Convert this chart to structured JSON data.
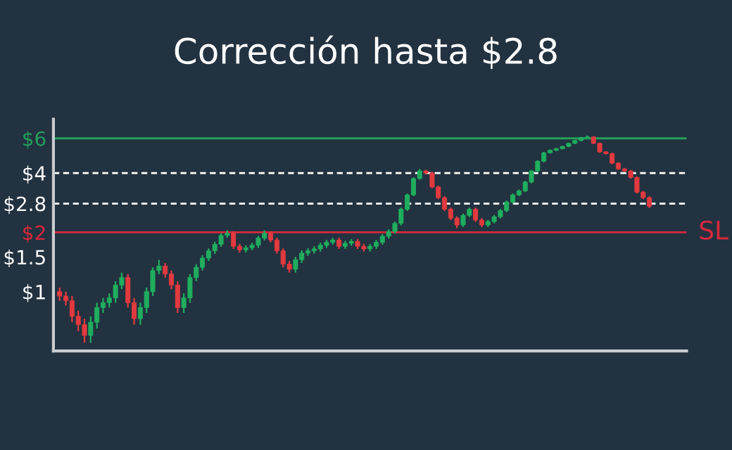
{
  "chart_data": {
    "type": "candlestick",
    "title": "Corrección hasta $2.8",
    "categories": [
      null,
      null,
      null,
      null,
      null,
      null,
      null,
      null,
      null,
      null,
      null,
      null,
      null,
      null,
      null,
      null,
      null,
      null,
      null,
      null,
      null,
      null,
      null,
      null,
      null,
      null,
      null,
      null,
      null,
      null,
      null,
      null,
      null,
      null,
      null,
      null,
      null,
      null,
      null,
      null,
      null,
      null,
      null,
      null,
      null,
      null,
      null,
      null,
      null,
      null,
      null,
      null,
      null,
      null,
      null,
      null,
      null,
      null,
      null,
      null,
      null,
      null,
      null,
      null,
      null,
      null,
      null,
      null,
      null,
      null,
      null,
      null,
      null,
      null,
      null,
      null,
      null,
      null,
      null,
      null,
      null,
      null,
      null,
      null,
      null,
      null,
      null,
      null,
      null,
      null,
      null,
      null,
      null,
      null,
      null,
      null
    ],
    "ohlc": [
      [
        1.0,
        1.05,
        0.9,
        0.95
      ],
      [
        0.95,
        1.0,
        0.85,
        0.9
      ],
      [
        0.9,
        0.95,
        0.7,
        0.75
      ],
      [
        0.75,
        0.8,
        0.63,
        0.68
      ],
      [
        0.68,
        0.73,
        0.55,
        0.6
      ],
      [
        0.6,
        0.75,
        0.55,
        0.7
      ],
      [
        0.7,
        0.88,
        0.65,
        0.83
      ],
      [
        0.83,
        0.93,
        0.78,
        0.88
      ],
      [
        0.88,
        0.98,
        0.83,
        0.93
      ],
      [
        0.93,
        1.13,
        0.88,
        1.08
      ],
      [
        1.08,
        1.25,
        1.03,
        1.18
      ],
      [
        1.18,
        1.23,
        0.83,
        0.88
      ],
      [
        0.88,
        0.93,
        0.68,
        0.73
      ],
      [
        0.73,
        0.88,
        0.68,
        0.83
      ],
      [
        0.83,
        1.05,
        0.78,
        1.0
      ],
      [
        1.0,
        1.33,
        0.95,
        1.28
      ],
      [
        1.28,
        1.45,
        1.23,
        1.35
      ],
      [
        1.35,
        1.4,
        1.18,
        1.23
      ],
      [
        1.23,
        1.28,
        1.03,
        1.08
      ],
      [
        1.08,
        1.13,
        0.78,
        0.83
      ],
      [
        0.83,
        0.98,
        0.78,
        0.93
      ],
      [
        0.93,
        1.23,
        0.88,
        1.18
      ],
      [
        1.18,
        1.38,
        1.13,
        1.33
      ],
      [
        1.33,
        1.53,
        1.28,
        1.48
      ],
      [
        1.48,
        1.66,
        1.43,
        1.61
      ],
      [
        1.61,
        1.79,
        1.56,
        1.74
      ],
      [
        1.74,
        1.98,
        1.69,
        1.93
      ],
      [
        1.93,
        2.05,
        1.88,
        1.98
      ],
      [
        1.98,
        2.03,
        1.65,
        1.7
      ],
      [
        1.7,
        1.75,
        1.58,
        1.63
      ],
      [
        1.63,
        1.72,
        1.58,
        1.67
      ],
      [
        1.67,
        1.77,
        1.62,
        1.72
      ],
      [
        1.72,
        1.92,
        1.67,
        1.87
      ],
      [
        1.87,
        2.05,
        1.82,
        1.98
      ],
      [
        1.98,
        2.03,
        1.78,
        1.83
      ],
      [
        1.83,
        1.88,
        1.56,
        1.61
      ],
      [
        1.61,
        1.66,
        1.33,
        1.38
      ],
      [
        1.38,
        1.43,
        1.25,
        1.3
      ],
      [
        1.3,
        1.5,
        1.25,
        1.45
      ],
      [
        1.45,
        1.62,
        1.4,
        1.57
      ],
      [
        1.57,
        1.66,
        1.52,
        1.61
      ],
      [
        1.61,
        1.7,
        1.56,
        1.65
      ],
      [
        1.65,
        1.77,
        1.6,
        1.72
      ],
      [
        1.72,
        1.83,
        1.67,
        1.78
      ],
      [
        1.78,
        1.88,
        1.73,
        1.83
      ],
      [
        1.83,
        1.88,
        1.65,
        1.7
      ],
      [
        1.7,
        1.81,
        1.65,
        1.76
      ],
      [
        1.76,
        1.85,
        1.71,
        1.8
      ],
      [
        1.8,
        1.85,
        1.65,
        1.7
      ],
      [
        1.7,
        1.75,
        1.6,
        1.65
      ],
      [
        1.65,
        1.75,
        1.6,
        1.7
      ],
      [
        1.7,
        1.83,
        1.65,
        1.78
      ],
      [
        1.78,
        1.96,
        1.73,
        1.91
      ],
      [
        1.91,
        2.07,
        1.86,
        2.02
      ],
      [
        2.02,
        2.27,
        1.97,
        2.22
      ],
      [
        2.22,
        2.67,
        2.17,
        2.62
      ],
      [
        2.62,
        3.15,
        2.57,
        3.1
      ],
      [
        3.1,
        3.8,
        3.05,
        3.75
      ],
      [
        3.75,
        4.2,
        3.7,
        4.1
      ],
      [
        4.1,
        4.15,
        3.95,
        4.0
      ],
      [
        4.0,
        4.05,
        3.35,
        3.4
      ],
      [
        3.4,
        3.45,
        2.95,
        3.0
      ],
      [
        3.0,
        3.05,
        2.57,
        2.62
      ],
      [
        2.62,
        2.67,
        2.31,
        2.36
      ],
      [
        2.36,
        2.41,
        2.1,
        2.18
      ],
      [
        2.18,
        2.49,
        2.13,
        2.44
      ],
      [
        2.44,
        2.67,
        2.39,
        2.62
      ],
      [
        2.62,
        2.67,
        2.26,
        2.31
      ],
      [
        2.31,
        2.36,
        2.13,
        2.18
      ],
      [
        2.18,
        2.32,
        2.13,
        2.27
      ],
      [
        2.27,
        2.45,
        2.22,
        2.4
      ],
      [
        2.4,
        2.63,
        2.35,
        2.58
      ],
      [
        2.58,
        2.9,
        2.53,
        2.85
      ],
      [
        2.85,
        3.15,
        2.8,
        3.1
      ],
      [
        3.1,
        3.3,
        3.05,
        3.25
      ],
      [
        3.25,
        3.65,
        3.2,
        3.6
      ],
      [
        3.6,
        4.15,
        3.55,
        4.1
      ],
      [
        4.1,
        4.64,
        4.05,
        4.59
      ],
      [
        4.59,
        5.12,
        4.54,
        5.07
      ],
      [
        5.07,
        5.27,
        5.02,
        5.22
      ],
      [
        5.22,
        5.37,
        5.17,
        5.32
      ],
      [
        5.32,
        5.51,
        5.27,
        5.46
      ],
      [
        5.46,
        5.71,
        5.41,
        5.66
      ],
      [
        5.66,
        5.9,
        5.61,
        5.85
      ],
      [
        5.85,
        6.1,
        5.8,
        6.05
      ],
      [
        6.05,
        6.2,
        6.0,
        6.1
      ],
      [
        6.1,
        6.15,
        5.61,
        5.66
      ],
      [
        5.66,
        5.71,
        5.07,
        5.12
      ],
      [
        5.12,
        5.17,
        4.97,
        5.02
      ],
      [
        5.02,
        5.07,
        4.44,
        4.49
      ],
      [
        4.49,
        4.54,
        4.15,
        4.2
      ],
      [
        4.2,
        4.25,
        4.05,
        4.1
      ],
      [
        4.1,
        4.15,
        3.75,
        3.8
      ],
      [
        3.8,
        3.85,
        3.15,
        3.2
      ],
      [
        3.2,
        3.25,
        2.95,
        3.0
      ],
      [
        3.0,
        3.05,
        2.66,
        2.71
      ]
    ],
    "colors": [
      "#e23a3f",
      "#e23a3f",
      "#e23a3f",
      "#e23a3f",
      "#e23a3f",
      "#1fae5e",
      "#1fae5e",
      "#1fae5e",
      "#1fae5e",
      "#1fae5e",
      "#1fae5e",
      "#e23a3f",
      "#e23a3f",
      "#1fae5e",
      "#1fae5e",
      "#1fae5e",
      "#1fae5e",
      "#e23a3f",
      "#e23a3f",
      "#e23a3f",
      "#1fae5e",
      "#1fae5e",
      "#1fae5e",
      "#1fae5e",
      "#1fae5e",
      "#1fae5e",
      "#1fae5e",
      "#1fae5e",
      "#e23a3f",
      "#e23a3f",
      "#1fae5e",
      "#1fae5e",
      "#1fae5e",
      "#1fae5e",
      "#e23a3f",
      "#e23a3f",
      "#e23a3f",
      "#e23a3f",
      "#1fae5e",
      "#1fae5e",
      "#1fae5e",
      "#1fae5e",
      "#1fae5e",
      "#1fae5e",
      "#1fae5e",
      "#e23a3f",
      "#1fae5e",
      "#1fae5e",
      "#e23a3f",
      "#e23a3f",
      "#1fae5e",
      "#1fae5e",
      "#1fae5e",
      "#1fae5e",
      "#1fae5e",
      "#1fae5e",
      "#1fae5e",
      "#1fae5e",
      "#1fae5e",
      "#e23a3f",
      "#e23a3f",
      "#e23a3f",
      "#e23a3f",
      "#e23a3f",
      "#e23a3f",
      "#1fae5e",
      "#1fae5e",
      "#e23a3f",
      "#e23a3f",
      "#1fae5e",
      "#1fae5e",
      "#1fae5e",
      "#1fae5e",
      "#1fae5e",
      "#1fae5e",
      "#1fae5e",
      "#1fae5e",
      "#1fae5e",
      "#1fae5e",
      "#1fae5e",
      "#1fae5e",
      "#1fae5e",
      "#1fae5e",
      "#1fae5e",
      "#1fae5e",
      "#1fae5e",
      "#e23a3f",
      "#e23a3f",
      "#e23a3f",
      "#e23a3f",
      "#e23a3f",
      "#e23a3f",
      "#e23a3f",
      "#e23a3f",
      "#e23a3f",
      "#e23a3f"
    ],
    "log": "y",
    "ylim": [
      0.5,
      7.5
    ],
    "yticks": [
      {
        "value": 1,
        "label": "$1"
      },
      {
        "value": 1.5,
        "label": "$1.5"
      },
      {
        "value": 2,
        "label": "$2"
      },
      {
        "value": 2.8,
        "label": "$2.8"
      },
      {
        "value": 4,
        "label": "$4"
      },
      {
        "value": 6,
        "label": "$6"
      }
    ],
    "tick_labels": "y",
    "grid": false,
    "ref_lines": [
      {
        "axis": "y",
        "value": 6,
        "color": "#23a05a",
        "line_style": "solid"
      },
      {
        "axis": "y",
        "value": 4,
        "color": "#ffffff",
        "line_style": "dashed"
      },
      {
        "axis": "y",
        "value": 2.8,
        "color": "#ffffff",
        "line_style": "dashed"
      },
      {
        "axis": "y",
        "value": 2,
        "color": "#d8283c",
        "line_style": "solid",
        "label": "SL"
      }
    ]
  }
}
